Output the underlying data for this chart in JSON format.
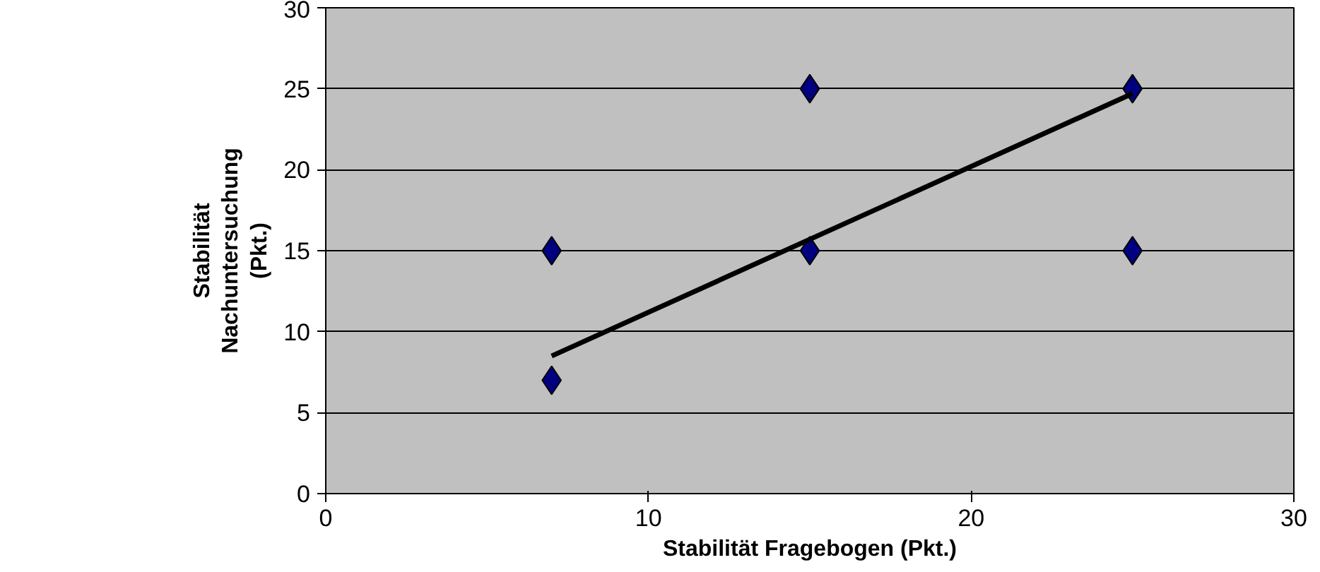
{
  "chart_data": {
    "type": "scatter",
    "xlabel": "Stabilität Fragebogen (Pkt.)",
    "ylabel": "Stabilität\nNachuntersuchung\n(Pkt.)",
    "series": [
      {
        "color": "#000080",
        "x": [
          7,
          7,
          15,
          15,
          25,
          25
        ],
        "values": [
          15,
          7,
          25,
          15,
          25,
          15
        ],
        "marker": "diamond"
      },
      {
        "type": "line",
        "color": "#000000",
        "x": [
          7,
          25
        ],
        "values": [
          8.5,
          24.7
        ],
        "marker": "none"
      }
    ],
    "xlim": [
      0,
      30
    ],
    "ylim": [
      0,
      30
    ],
    "xticks": [
      0,
      10,
      20,
      30
    ],
    "yticks": [
      0,
      5,
      10,
      15,
      20,
      25,
      30
    ],
    "grid": "y"
  }
}
